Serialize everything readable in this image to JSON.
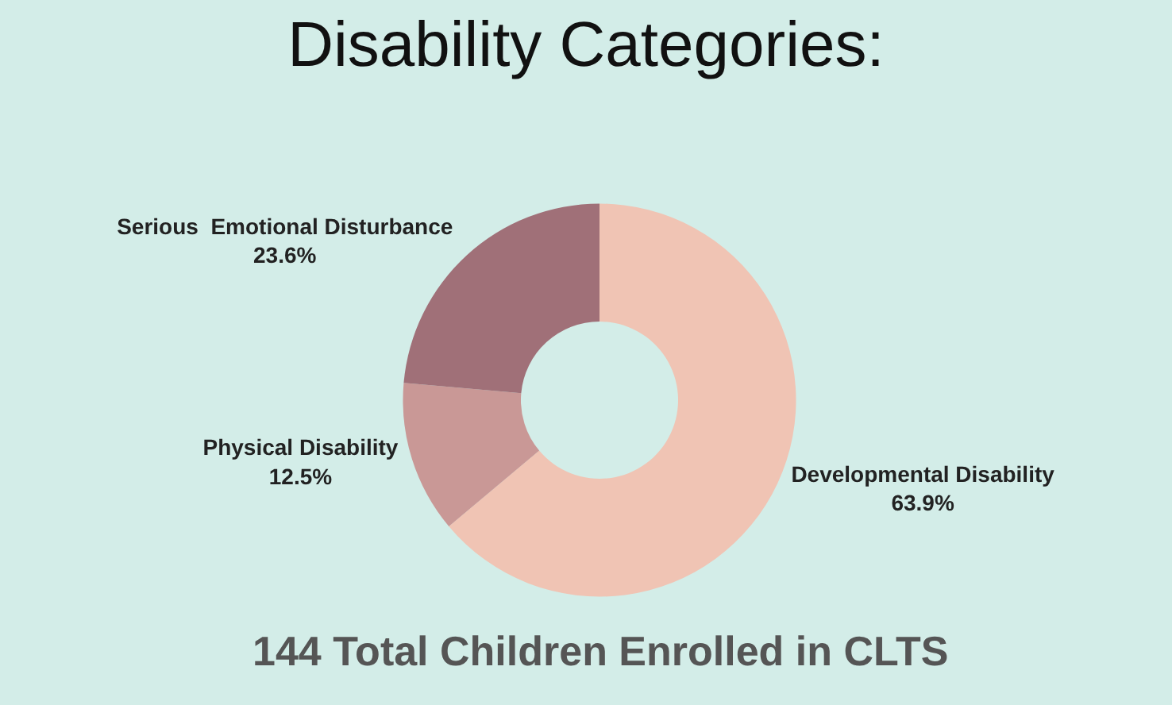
{
  "chart_data": {
    "type": "donut",
    "title": "Disability Categories:",
    "categories": [
      "Developmental Disability",
      "Physical Disability",
      "Serious  Emotional Disturbance"
    ],
    "values": [
      63.9,
      12.5,
      23.6
    ],
    "value_labels": [
      "63.9%",
      "12.5%",
      "23.6%"
    ],
    "colors": [
      "#f0c4b4",
      "#c99896",
      "#a07078"
    ],
    "annotations": [
      "144 Total Children Enrolled in CLTS"
    ],
    "legend": false
  }
}
